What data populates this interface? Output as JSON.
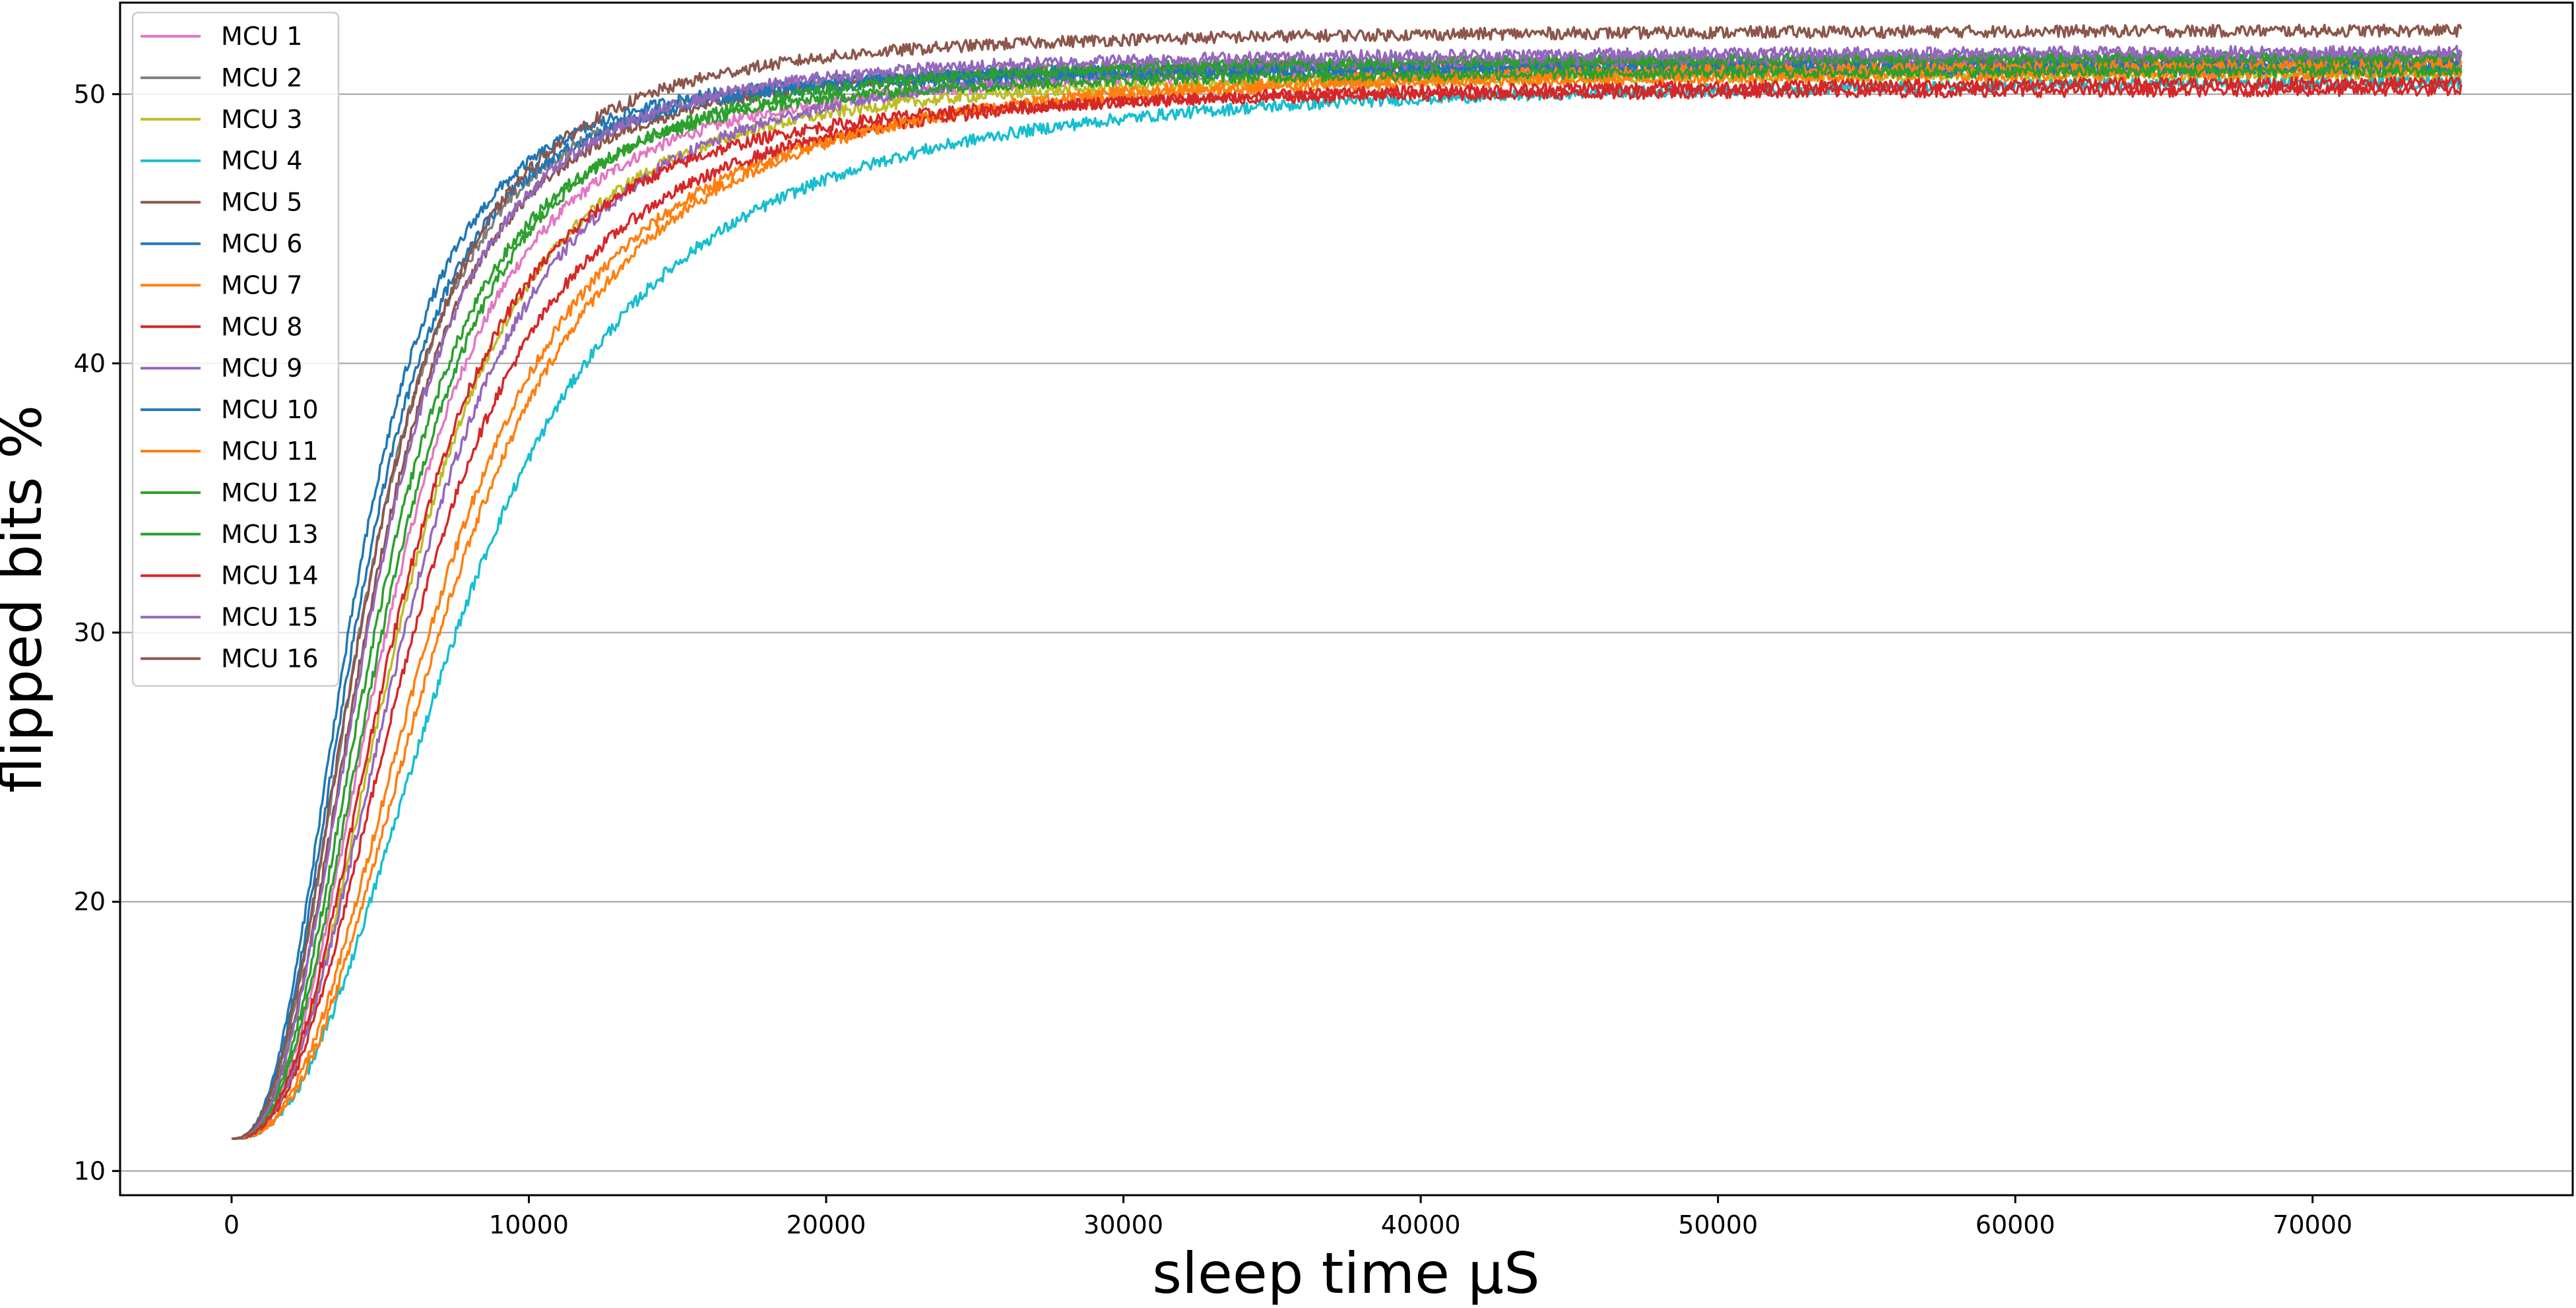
{
  "chart_data": {
    "type": "line",
    "title": "",
    "xlabel": "sleep time µS",
    "ylabel": "flipped bits %",
    "xlim": [
      -3750,
      78750
    ],
    "ylim": [
      9.1,
      53.4
    ],
    "xticks": [
      0,
      10000,
      20000,
      30000,
      40000,
      50000,
      60000,
      70000
    ],
    "yticks": [
      10,
      20,
      30,
      40,
      50
    ],
    "y_grid": true,
    "x_grid": false,
    "legend_position": "top-left",
    "x_range": [
      0,
      75000
    ],
    "series": [
      {
        "name": "MCU 1",
        "color": "#e377c2",
        "start": 11.2,
        "end": 51.0,
        "t50": 5400,
        "k": 2.6
      },
      {
        "name": "MCU 2",
        "color": "#7f7f7f",
        "start": 11.2,
        "end": 51.3,
        "t50": 4500,
        "k": 2.6
      },
      {
        "name": "MCU 3",
        "color": "#bcbd22",
        "start": 11.2,
        "end": 50.8,
        "t50": 5800,
        "k": 2.6
      },
      {
        "name": "MCU 4",
        "color": "#17becf",
        "start": 11.2,
        "end": 50.6,
        "t50": 7800,
        "k": 2.4
      },
      {
        "name": "MCU 5",
        "color": "#8c564b",
        "start": 11.2,
        "end": 51.2,
        "t50": 4700,
        "k": 2.6
      },
      {
        "name": "MCU 6",
        "color": "#1f77b4",
        "start": 11.2,
        "end": 51.1,
        "t50": 4100,
        "k": 2.6
      },
      {
        "name": "MCU 7",
        "color": "#ff7f0e",
        "start": 11.2,
        "end": 50.9,
        "t50": 6900,
        "k": 2.5
      },
      {
        "name": "MCU 8",
        "color": "#d62728",
        "start": 11.2,
        "end": 50.5,
        "t50": 6300,
        "k": 2.5
      },
      {
        "name": "MCU 9",
        "color": "#9467bd",
        "start": 11.2,
        "end": 51.5,
        "t50": 6100,
        "k": 2.5
      },
      {
        "name": "MCU 10",
        "color": "#1f77b4",
        "start": 11.2,
        "end": 51.0,
        "t50": 4300,
        "k": 2.6
      },
      {
        "name": "MCU 11",
        "color": "#ff7f0e",
        "start": 11.2,
        "end": 51.2,
        "t50": 7300,
        "k": 2.5
      },
      {
        "name": "MCU 12",
        "color": "#2ca02c",
        "start": 11.2,
        "end": 50.9,
        "t50": 5000,
        "k": 2.6
      },
      {
        "name": "MCU 13",
        "color": "#2ca02c",
        "start": 11.2,
        "end": 51.4,
        "t50": 5300,
        "k": 2.6
      },
      {
        "name": "MCU 14",
        "color": "#d62728",
        "start": 11.2,
        "end": 50.2,
        "t50": 5600,
        "k": 2.6
      },
      {
        "name": "MCU 15",
        "color": "#9467bd",
        "start": 11.2,
        "end": 51.6,
        "t50": 4800,
        "k": 2.6
      },
      {
        "name": "MCU 16",
        "color": "#8c564b",
        "start": 11.2,
        "end": 52.4,
        "t50": 4600,
        "k": 2.5
      }
    ]
  }
}
